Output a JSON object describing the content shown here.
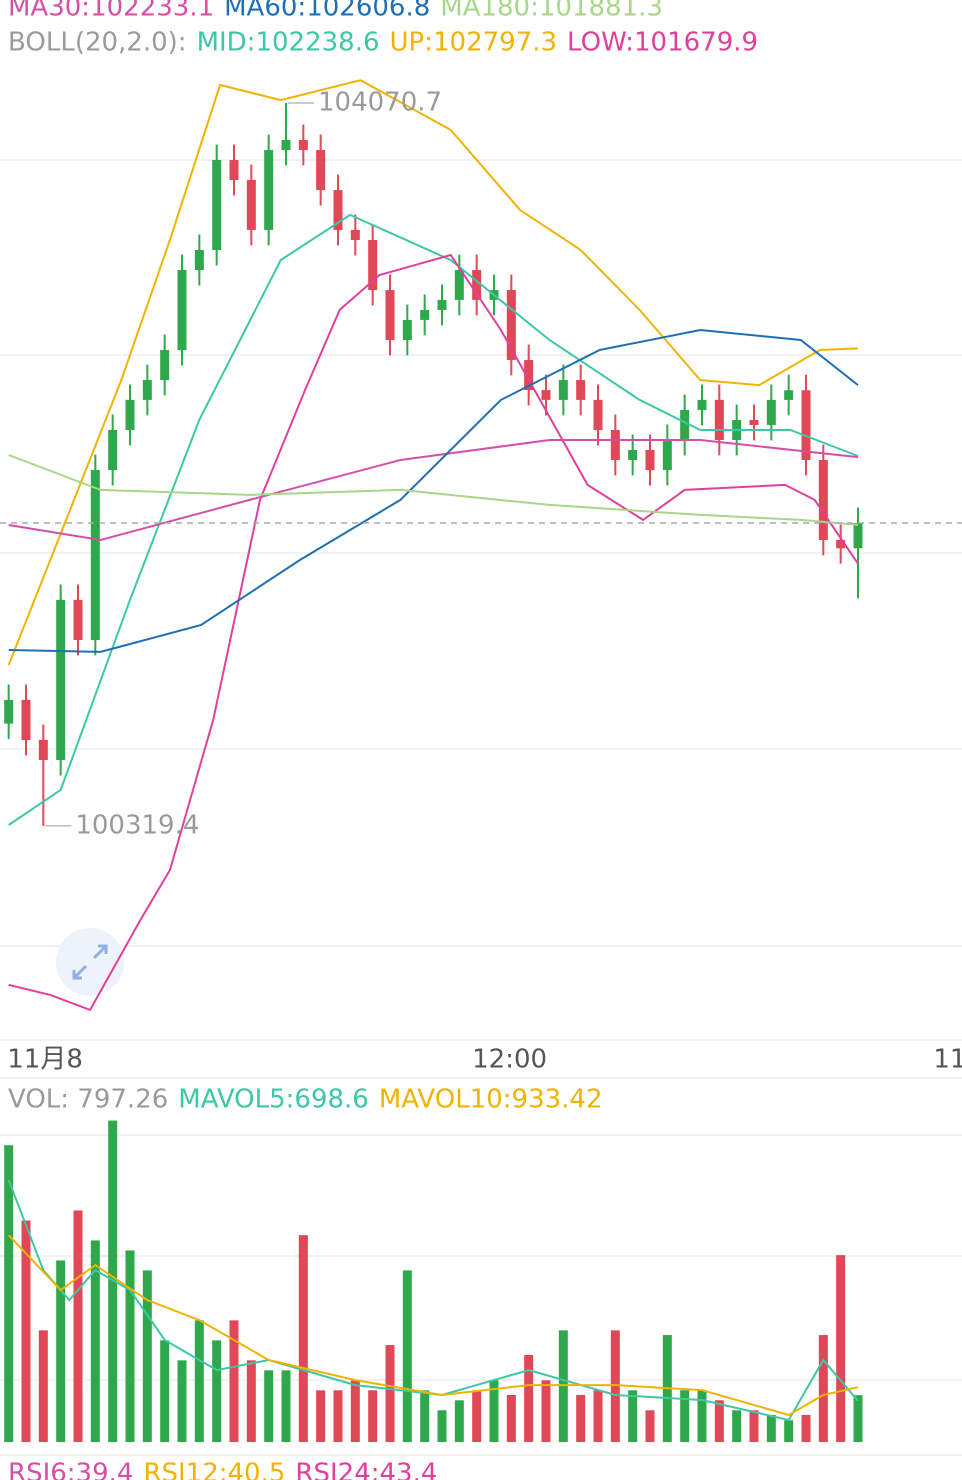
{
  "chart_data": [
    {
      "type": "candlestick",
      "header": [
        [
          {
            "text": "MA30:102233.1",
            "color": "#d64fa7"
          },
          {
            "text": "MA60:102606.8",
            "color": "#1f6fb5"
          },
          {
            "text": "MA180:101881.3",
            "color": "#a8d68a"
          }
        ],
        [
          {
            "text": "BOLL(20,2.0):",
            "color": "#9a9a9a"
          },
          {
            "text": "MID:102238.6",
            "color": "#3cc7a6"
          },
          {
            "text": "UP:102797.3",
            "color": "#f0b400"
          },
          {
            "text": "LOW:101679.9",
            "color": "#e0409a"
          }
        ]
      ],
      "xlim": [
        -0.5,
        55
      ],
      "ylim": [
        99208,
        104294
      ],
      "xticks": [
        {
          "value": 2.1,
          "label": "11月8"
        },
        {
          "value": 28.9,
          "label": "12:00"
        },
        {
          "value": 54.3,
          "label": "11"
        }
      ],
      "up_color": "#2ea84a",
      "down_color": "#e04757",
      "open": [
        100850,
        100973,
        100765,
        100661,
        101492,
        101284,
        102166,
        102374,
        102530,
        102633,
        102789,
        103204,
        103308,
        103775,
        103671,
        103412,
        103827,
        103879,
        103827,
        103619,
        103412,
        103360,
        103100,
        102841,
        102945,
        102997,
        103049,
        103204,
        103049,
        103100,
        102737,
        102581,
        102530,
        102633,
        102530,
        102374,
        102218,
        102270,
        102166,
        102322,
        102478,
        102530,
        102322,
        102426,
        102400,
        102530,
        102580,
        102218,
        101803,
        101760
      ],
      "high": [
        101053,
        101053,
        100845,
        101572,
        101572,
        102246,
        102454,
        102610,
        102713,
        102869,
        103284,
        103388,
        103855,
        103855,
        103751,
        103907,
        104070.7,
        103959,
        103907,
        103699,
        103492,
        103440,
        103180,
        103025,
        103077,
        103129,
        103284,
        103284,
        103180,
        103180,
        102817,
        102661,
        102713,
        102713,
        102610,
        102454,
        102350,
        102350,
        102402,
        102558,
        102610,
        102610,
        102506,
        102506,
        102610,
        102660,
        102660,
        102298,
        101883,
        101971
      ],
      "low": [
        100770,
        100685,
        100319.4,
        100581,
        101204,
        101204,
        102086,
        102294,
        102450,
        102553,
        102709,
        103124,
        103228,
        103591,
        103332,
        103332,
        103747,
        103747,
        103539,
        103332,
        103280,
        103020,
        102761,
        102761,
        102865,
        102917,
        102969,
        102969,
        102969,
        102657,
        102501,
        102450,
        102450,
        102450,
        102294,
        102138,
        102138,
        102086,
        102086,
        102242,
        102398,
        102242,
        102242,
        102320,
        102320,
        102450,
        102138,
        101723,
        101680,
        101500
      ],
      "close": [
        100973,
        100765,
        100661,
        101492,
        101284,
        102166,
        102374,
        102530,
        102633,
        102789,
        103204,
        103308,
        103775,
        103671,
        103412,
        103827,
        103879,
        103827,
        103619,
        103412,
        103360,
        103100,
        102841,
        102945,
        102997,
        103049,
        103204,
        103049,
        103100,
        102737,
        102581,
        102530,
        102633,
        102530,
        102374,
        102218,
        102270,
        102166,
        102322,
        102478,
        102530,
        102322,
        102426,
        102400,
        102530,
        102580,
        102218,
        101803,
        101760,
        101891
      ],
      "series": [
        {
          "color": "#f0b400",
          "x": [
            0,
            2.4,
            6.5,
            9.3,
            12.2,
            15.7,
            20.3,
            25.5,
            29.5,
            33,
            36.4,
            39.9,
            43.3,
            46.8,
            49
          ],
          "values": [
            101154,
            101699,
            102633,
            103360,
            104164,
            104086,
            104189,
            103931,
            103516,
            103308,
            102997,
            102633,
            102607,
            102789,
            102797.3
          ]
        },
        {
          "color": "#3cc7a6",
          "x": [
            0,
            3,
            7,
            11,
            15.7,
            19.7,
            25.5,
            31.2,
            36.4,
            39.9,
            45.1,
            49
          ],
          "values": [
            100324,
            100506,
            101492,
            102426,
            103256,
            103490,
            103256,
            102841,
            102530,
            102374,
            102374,
            102238.6
          ]
        },
        {
          "color": "#e0409a",
          "x": [
            0,
            2.4,
            4.7,
            7.6,
            9.3,
            11.8,
            14.5,
            17.1,
            19.1,
            21.4,
            25.5,
            28.4,
            33.4,
            36.6,
            39,
            44.8,
            46.5,
            49
          ],
          "values": [
            99494,
            99442,
            99364,
            99831,
            100090,
            100869,
            102011,
            102582,
            102997,
            103178,
            103282,
            102893,
            102089,
            101907,
            102063,
            102089,
            102011,
            101679.9
          ]
        },
        {
          "color": "#d64fa7",
          "x": [
            0,
            5.3,
            13.9,
            22.6,
            31.2,
            39.9,
            49
          ],
          "values": [
            101881,
            101803,
            102011,
            102218,
            102322,
            102322,
            102233.1
          ]
        },
        {
          "color": "#1f6fb5",
          "x": [
            0,
            5.3,
            11.1,
            16.8,
            22.6,
            28.4,
            34.1,
            39.9,
            45.7,
            49
          ],
          "values": [
            101232,
            101222,
            101362,
            101699,
            102011,
            102530,
            102789,
            102893,
            102841,
            102606.8
          ]
        },
        {
          "color": "#a8d68a",
          "x": [
            0,
            5.3,
            13.9,
            22.6,
            31.2,
            39.9,
            45.7,
            49
          ],
          "values": [
            102244,
            102063,
            102037,
            102063,
            101985,
            101933,
            101907,
            101881.3
          ]
        }
      ],
      "annotations": [
        {
          "value": 104070.7,
          "x": 16
        },
        {
          "value": 100319.4,
          "x": 2
        }
      ]
    },
    {
      "type": "bar",
      "header": [
        [
          {
            "text": "VOL: 797.26",
            "color": "#9a9a9a"
          },
          {
            "text": "MAVOL5:698.6",
            "color": "#3cc7a6"
          },
          {
            "text": "MAVOL10:933.42",
            "color": "#f0b400"
          }
        ]
      ],
      "xlim": [
        -0.5,
        55
      ],
      "ylim": [
        0,
        5650
      ],
      "values": [
        5050,
        3770,
        1900,
        3090,
        3940,
        3430,
        5470,
        3260,
        2920,
        1730,
        1390,
        2070,
        1730,
        2070,
        1390,
        1220,
        1220,
        3520,
        880,
        880,
        1050,
        880,
        1650,
        2920,
        880,
        540,
        710,
        880,
        1050,
        800,
        1480,
        1050,
        1900,
        800,
        880,
        1900,
        880,
        540,
        1820,
        880,
        880,
        710,
        540,
        540,
        460,
        370,
        460,
        1820,
        3180,
        797.26
      ],
      "series": [
        {
          "color": "#3cc7a6",
          "x": [
            0,
            2,
            3.5,
            5,
            7,
            9,
            12,
            15,
            20,
            25,
            30,
            35,
            40,
            45,
            47,
            49
          ],
          "values": [
            4456,
            2925,
            2415,
            2925,
            2585,
            1735,
            1224,
            1395,
            969,
            799,
            1224,
            799,
            714,
            374,
            1395,
            698.6
          ]
        },
        {
          "color": "#f0b400",
          "x": [
            0,
            3,
            5,
            8,
            11,
            15,
            20,
            25,
            30,
            35,
            40,
            45,
            47,
            49
          ],
          "values": [
            3520,
            2585,
            3010,
            2415,
            2075,
            1395,
            1054,
            799,
            969,
            969,
            884,
            459,
            799,
            933.42
          ]
        }
      ]
    }
  ],
  "rsi_header": [
    {
      "text": "RSI6:39.4",
      "color": "#d64fa7"
    },
    {
      "text": "RSI12:40.5",
      "color": "#f0b400"
    },
    {
      "text": "RSI24:43.4",
      "color": "#e0409a"
    }
  ]
}
